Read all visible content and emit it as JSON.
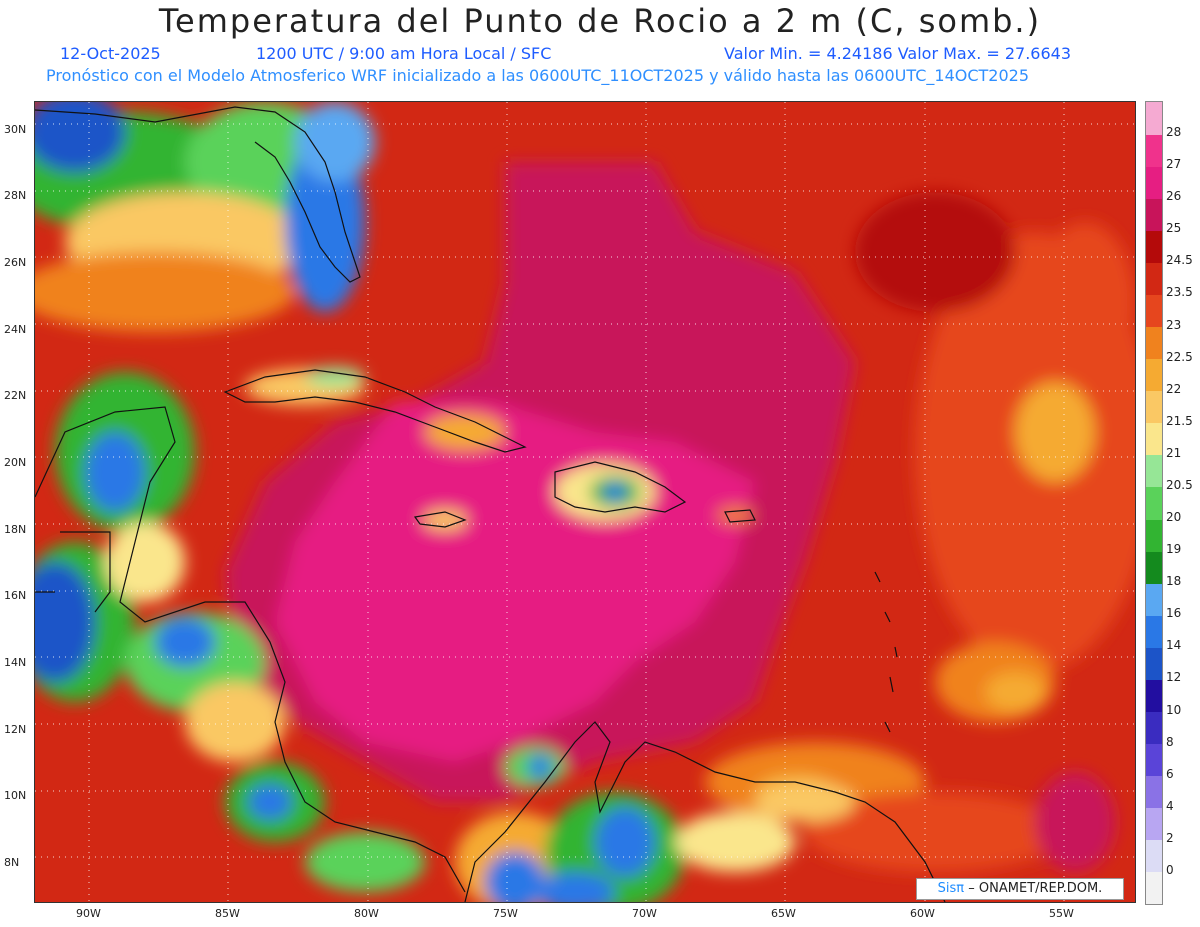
{
  "header": {
    "title": "Temperatura del Punto de Rocio a 2 m (C, somb.)",
    "date": "12-Oct-2025",
    "time": "1200 UTC / 9:00 am Hora Local / SFC",
    "minmax": "Valor Min. = 4.24186  Valor Max. = 27.6643",
    "model": "Pronóstico con el Modelo Atmosferico WRF inicializado a las 0600UTC_11OCT2025 y válido hasta las  0600UTC_14OCT2025"
  },
  "map": {
    "lat_range": [
      6.8,
      30.8
    ],
    "lon_range": [
      -92,
      -52.5
    ],
    "lat_ticks": [
      "8N",
      "10N",
      "12N",
      "14N",
      "16N",
      "18N",
      "20N",
      "22N",
      "24N",
      "26N",
      "28N",
      "30N"
    ],
    "lon_ticks": [
      "90W",
      "85W",
      "80W",
      "75W",
      "70W",
      "65W",
      "60W",
      "55W"
    ],
    "grid": "dotted"
  },
  "colorbar": {
    "labels": [
      "0",
      "2",
      "4",
      "6",
      "8",
      "10",
      "12",
      "14",
      "16",
      "18",
      "19",
      "20",
      "20.5",
      "21",
      "21.5",
      "22",
      "22.5",
      "23",
      "23.5",
      "24.5",
      "25",
      "26",
      "27",
      "28"
    ],
    "colors": [
      "#f2f2f2",
      "#dcdcf5",
      "#b8a6f2",
      "#8a72e6",
      "#5a44d8",
      "#3a2cc0",
      "#220ea0",
      "#1c54c8",
      "#2a78e6",
      "#5aa8f2",
      "#148a1e",
      "#32b432",
      "#5ad25a",
      "#96e696",
      "#fae68c",
      "#fac864",
      "#f5aa32",
      "#f0821e",
      "#e6461e",
      "#d22814",
      "#b40a0a",
      "#c8145a",
      "#e61e82",
      "#f0328c",
      "#f5aad2"
    ]
  },
  "credit": {
    "logo": "Sisπ",
    "text": "ONAMET/REP.DOM."
  }
}
